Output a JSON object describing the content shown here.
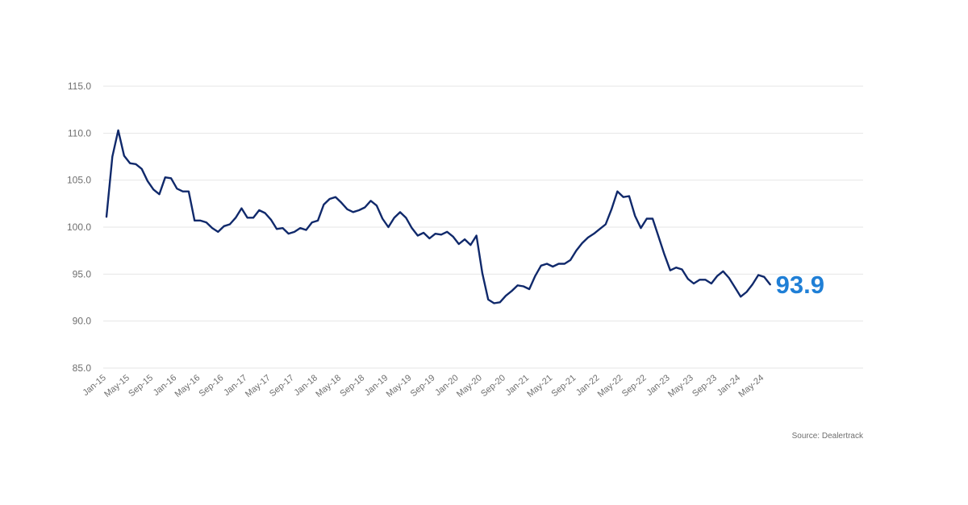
{
  "chart_data": {
    "type": "line",
    "title": "",
    "xlabel": "",
    "ylabel": "",
    "ylim": [
      85,
      115
    ],
    "y_ticks": [
      "85.0",
      "90.0",
      "95.0",
      "100.0",
      "105.0",
      "110.0",
      "115.0"
    ],
    "x_tick_labels": [
      "Jan-15",
      "May-15",
      "Sep-15",
      "Jan-16",
      "May-16",
      "Sep-16",
      "Jan-17",
      "May-17",
      "Sep-17",
      "Jan-18",
      "May-18",
      "Sep-18",
      "Jan-19",
      "May-19",
      "Sep-19",
      "Jan-20",
      "May-20",
      "Sep-20",
      "Jan-21",
      "May-21",
      "Sep-21",
      "Jan-22",
      "May-22",
      "Sep-22",
      "Jan-23",
      "May-23",
      "Sep-23",
      "Jan-24",
      "May-24"
    ],
    "grid": true,
    "legend": false,
    "series": [
      {
        "color": "#10296b",
        "start": "Jan-15",
        "frequency": "monthly",
        "values": [
          101.1,
          107.5,
          110.3,
          107.6,
          106.8,
          106.7,
          106.2,
          104.9,
          104.0,
          103.5,
          105.3,
          105.2,
          104.1,
          103.8,
          103.8,
          100.7,
          100.7,
          100.5,
          99.9,
          99.5,
          100.1,
          100.3,
          101.0,
          102.0,
          101.0,
          101.0,
          101.8,
          101.5,
          100.8,
          99.8,
          99.9,
          99.3,
          99.5,
          99.9,
          99.7,
          100.5,
          100.7,
          102.4,
          103.0,
          103.2,
          102.6,
          101.9,
          101.6,
          101.8,
          102.1,
          102.8,
          102.3,
          100.9,
          100.0,
          101.0,
          101.6,
          101.0,
          99.9,
          99.1,
          99.4,
          98.8,
          99.3,
          99.2,
          99.5,
          99.0,
          98.2,
          98.7,
          98.1,
          99.1,
          95.1,
          92.3,
          91.9,
          92.0,
          92.7,
          93.2,
          93.8,
          93.7,
          93.4,
          94.8,
          95.9,
          96.1,
          95.8,
          96.1,
          96.1,
          96.5,
          97.5,
          98.3,
          98.9,
          99.3,
          99.8,
          100.3,
          101.9,
          103.8,
          103.2,
          103.3,
          101.2,
          99.9,
          100.9,
          100.9,
          99.0,
          97.1,
          95.4,
          95.7,
          95.5,
          94.5,
          94.0,
          94.4,
          94.4,
          94.0,
          94.8,
          95.3,
          94.6,
          93.6,
          92.6,
          93.1,
          93.9,
          94.9,
          94.7,
          93.9
        ]
      }
    ],
    "last_value_label": "93.9",
    "last_value_color": "#1f7fd6",
    "source": "Source: Dealertrack"
  }
}
